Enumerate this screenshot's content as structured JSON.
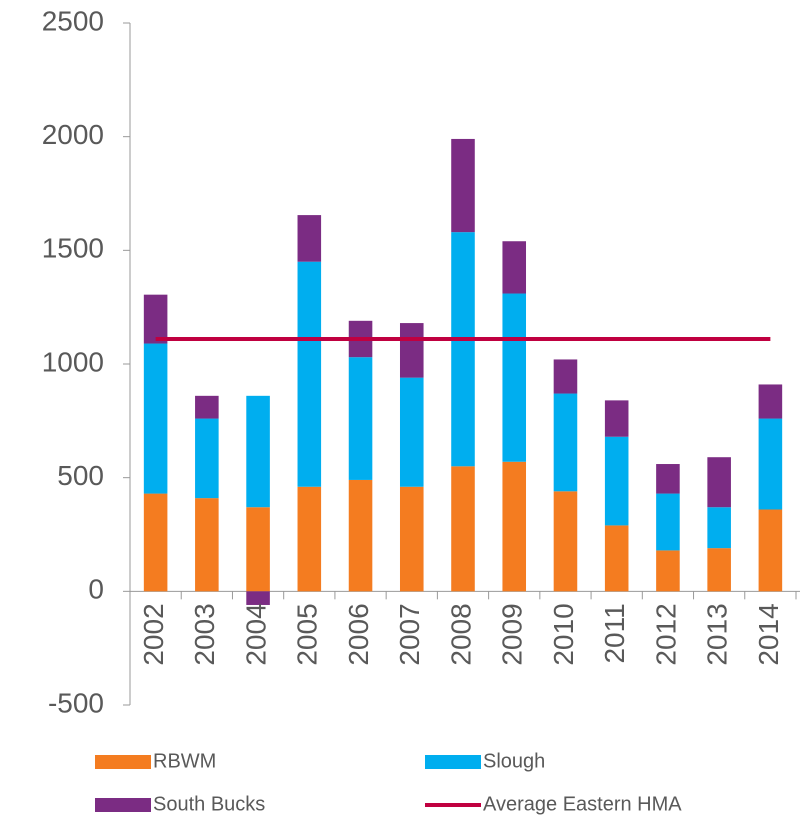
{
  "chart_data": {
    "type": "stacked-bar",
    "categories": [
      "2002",
      "2003",
      "2004",
      "2005",
      "2006",
      "2007",
      "2008",
      "2009",
      "2010",
      "2011",
      "2012",
      "2013",
      "2014"
    ],
    "series": [
      {
        "name": "RBWM",
        "color": "#f47c20",
        "values": [
          430,
          410,
          370,
          460,
          490,
          460,
          550,
          570,
          440,
          290,
          180,
          190,
          360
        ]
      },
      {
        "name": "Slough",
        "color": "#00aeef",
        "values": [
          660,
          350,
          490,
          990,
          540,
          480,
          1030,
          740,
          430,
          390,
          250,
          180,
          400
        ]
      },
      {
        "name": "South Bucks",
        "color": "#7b2c83",
        "values": [
          215,
          100,
          -60,
          205,
          160,
          240,
          410,
          230,
          150,
          160,
          130,
          220,
          150
        ]
      },
      {
        "name": "Average Eastern HMA",
        "color": "#c00040",
        "kind": "line",
        "values": [
          1110,
          1110,
          1110,
          1110,
          1110,
          1110,
          1110,
          1110,
          1110,
          1110,
          1110,
          1110,
          1110
        ]
      }
    ],
    "ylim": [
      -500,
      2500
    ],
    "yticks": [
      -500,
      0,
      500,
      1000,
      1500,
      2000,
      2500
    ],
    "grid": false
  }
}
